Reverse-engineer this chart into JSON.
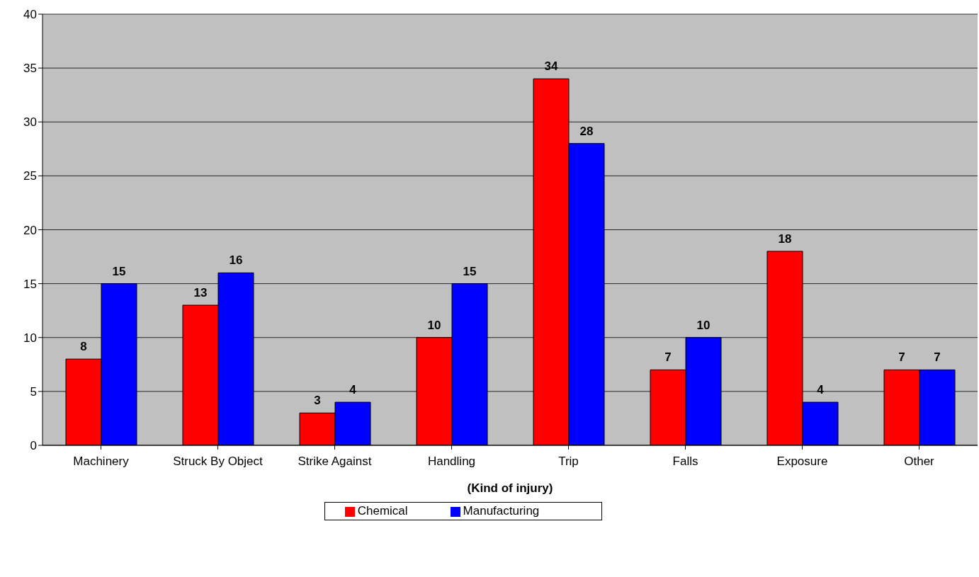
{
  "chart_data": {
    "type": "bar",
    "xlabel": "(Kind of injury)",
    "categories": [
      "Machinery",
      "Struck By Object",
      "Strike Against",
      "Handling",
      "Trip",
      "Falls",
      "Exposure",
      "Other"
    ],
    "series": [
      {
        "name": "Chemical",
        "color": "#ff0000",
        "values": [
          8,
          13,
          3,
          10,
          34,
          7,
          18,
          7
        ]
      },
      {
        "name": "Manufacturing",
        "color": "#0000ff",
        "values": [
          15,
          16,
          4,
          15,
          28,
          10,
          4,
          7
        ]
      }
    ],
    "ylim": [
      0,
      40
    ],
    "yticks": [
      0,
      5,
      10,
      15,
      20,
      25,
      30,
      35,
      40
    ],
    "grid": "y",
    "legend": "bottom",
    "data_labels": true
  }
}
